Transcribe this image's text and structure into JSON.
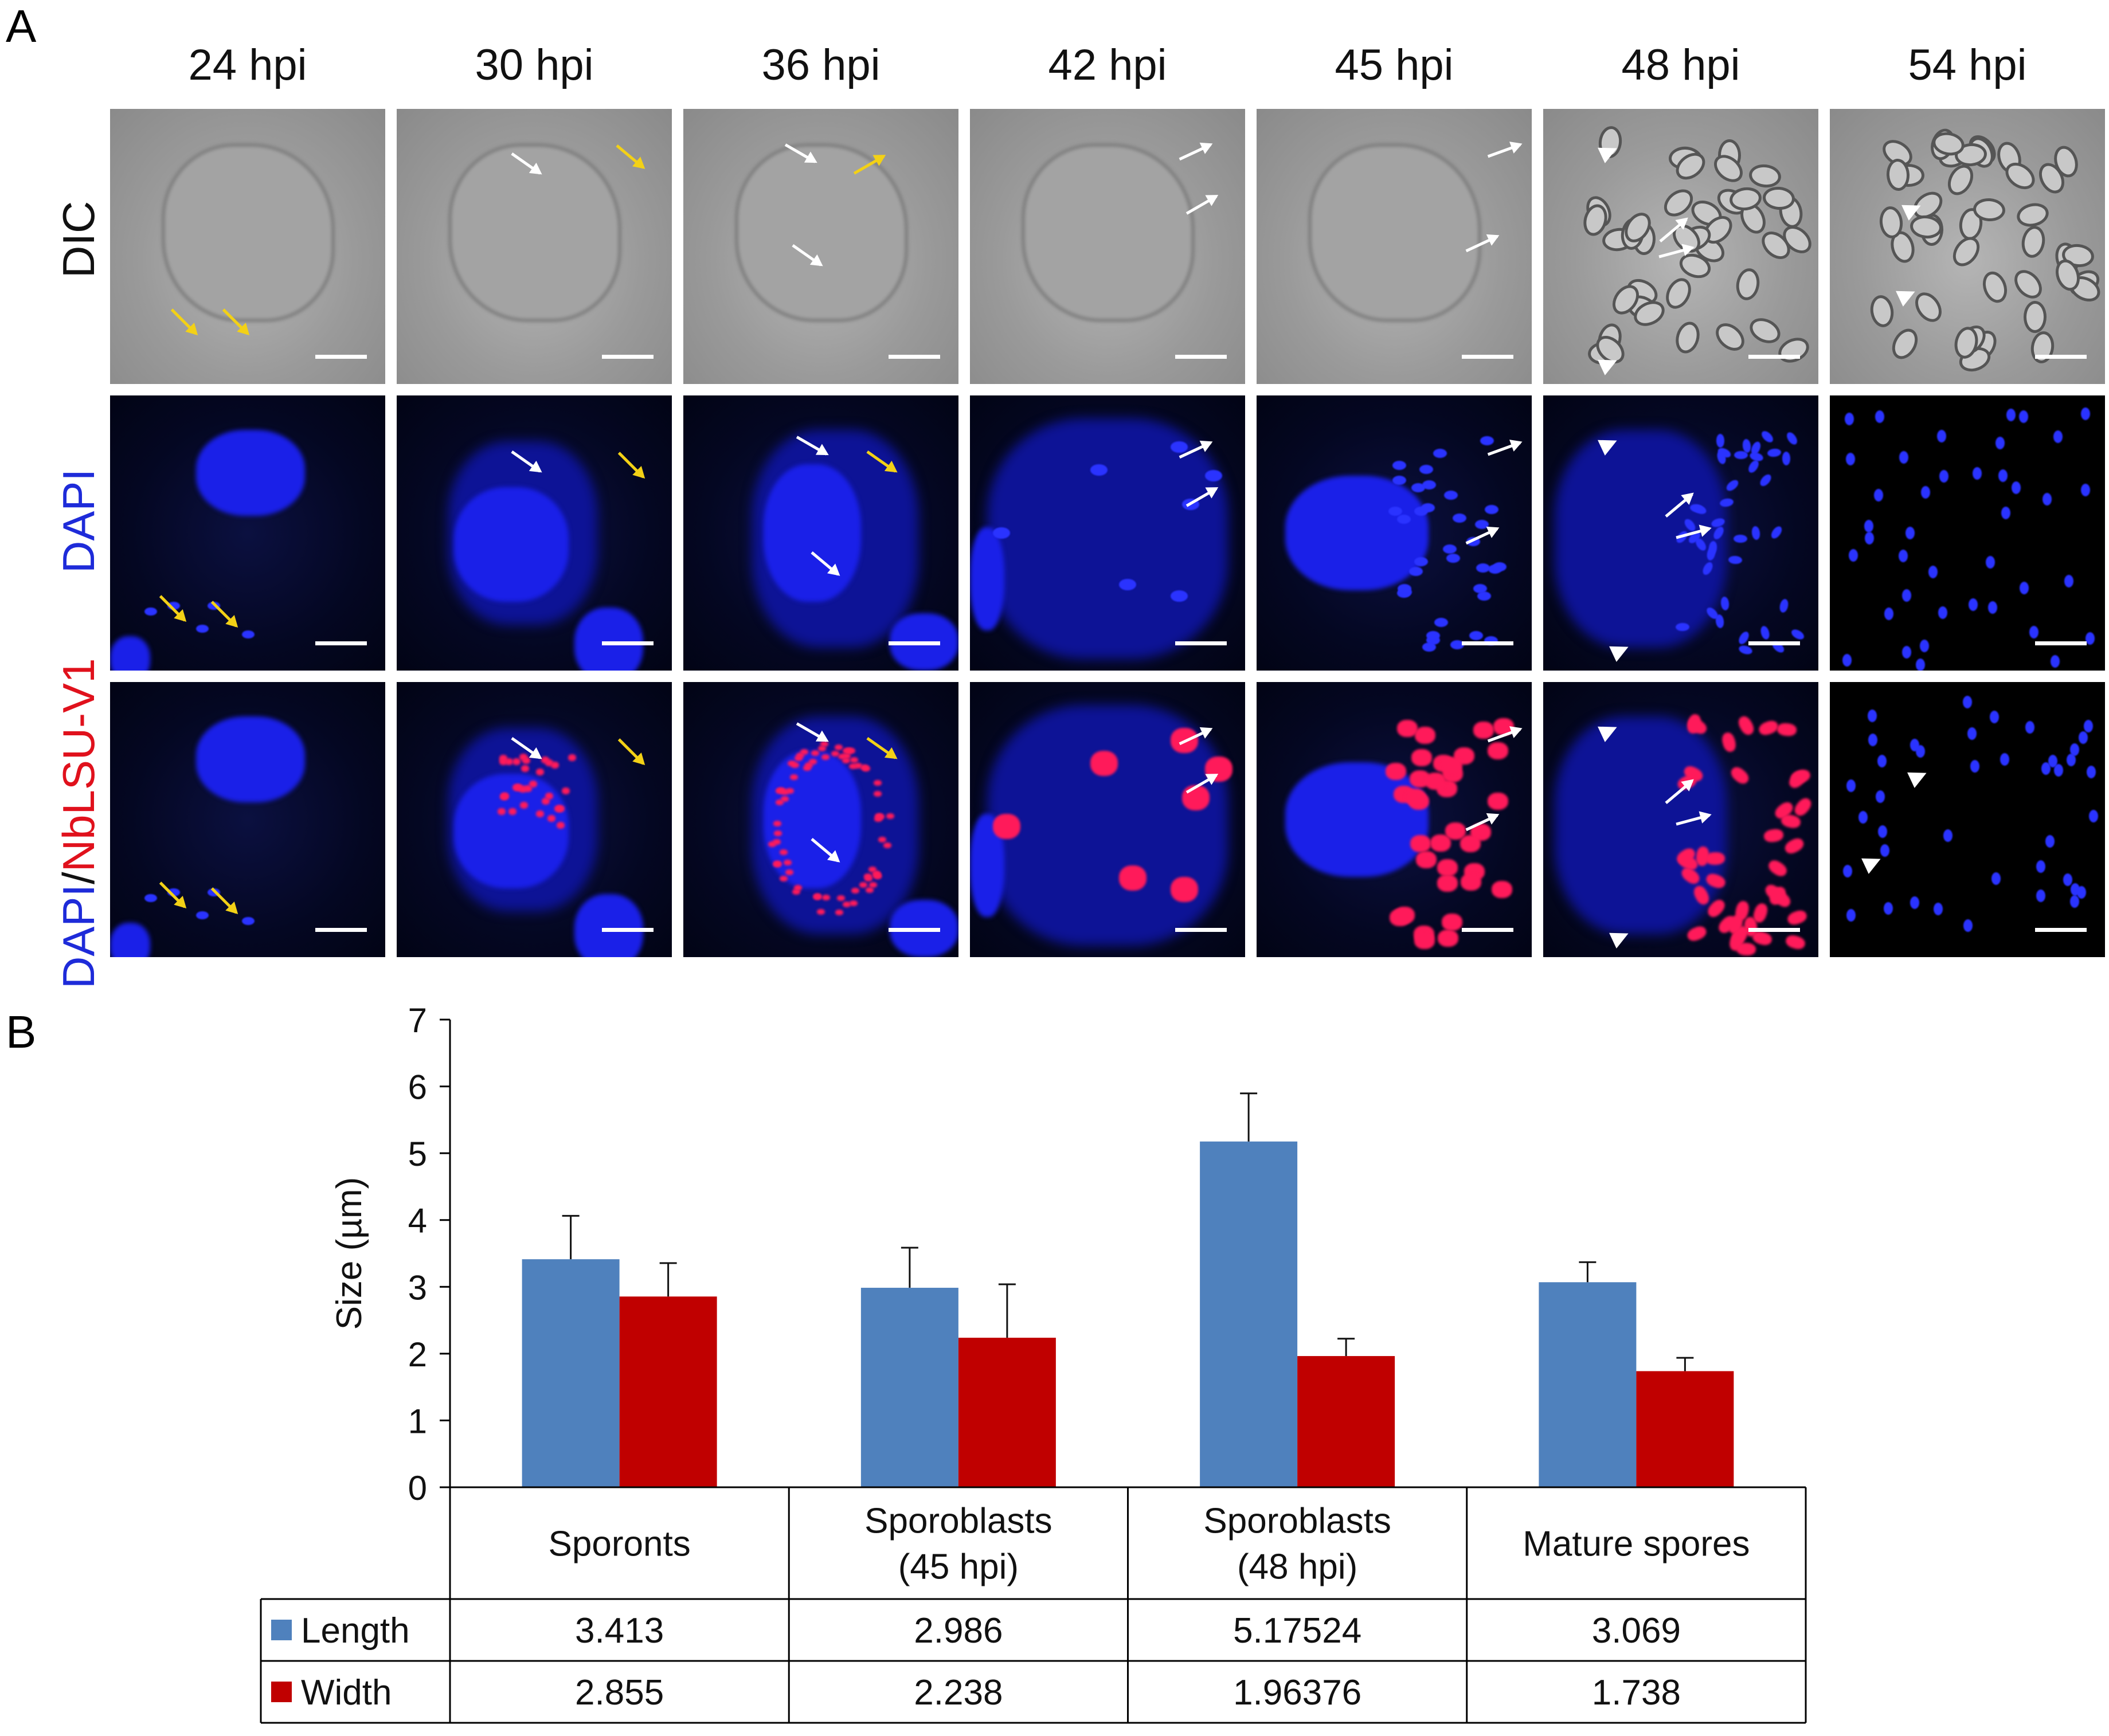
{
  "panel_a": {
    "letter": "A",
    "columns": [
      "24 hpi",
      "30 hpi",
      "36 hpi",
      "42 hpi",
      "45 hpi",
      "48 hpi",
      "54 hpi"
    ],
    "rows": {
      "dic": "DIC",
      "dapi": "DAPI",
      "merge_dapi": "DAPI",
      "merge_sep": "/",
      "merge_red": "NbLSU-V1"
    },
    "colors": {
      "dapi": "#1e2bd9",
      "nblsu": "#e0111c"
    }
  },
  "chart_data": {
    "panel_letter": "B",
    "type": "bar",
    "categories": [
      "Sporonts",
      "Sporoblasts (45 hpi)",
      "Sporoblasts (48 hpi)",
      "Mature spores"
    ],
    "category_lines": [
      [
        "Sporonts"
      ],
      [
        "Sporoblasts",
        "(45 hpi)"
      ],
      [
        "Sporoblasts",
        "(48 hpi)"
      ],
      [
        "Mature spores"
      ]
    ],
    "series": [
      {
        "name": "Length",
        "color": "#4f81bd",
        "values": [
          3.413,
          2.986,
          5.17524,
          3.069
        ],
        "errors": [
          0.65,
          0.6,
          0.72,
          0.3
        ],
        "table_values": [
          "3.413",
          "2.986",
          "5.17524",
          "3.069"
        ]
      },
      {
        "name": "Width",
        "color": "#c00000",
        "values": [
          2.855,
          2.238,
          1.96376,
          1.738
        ],
        "errors": [
          0.5,
          0.8,
          0.26,
          0.2
        ],
        "table_values": [
          "2.855",
          "2.238",
          "1.96376",
          "1.738"
        ]
      }
    ],
    "ylabel": "Size (µm)",
    "ylim": [
      0,
      7
    ],
    "yticks": [
      0,
      1,
      2,
      3,
      4,
      5,
      6,
      7
    ],
    "legend": "data table"
  }
}
